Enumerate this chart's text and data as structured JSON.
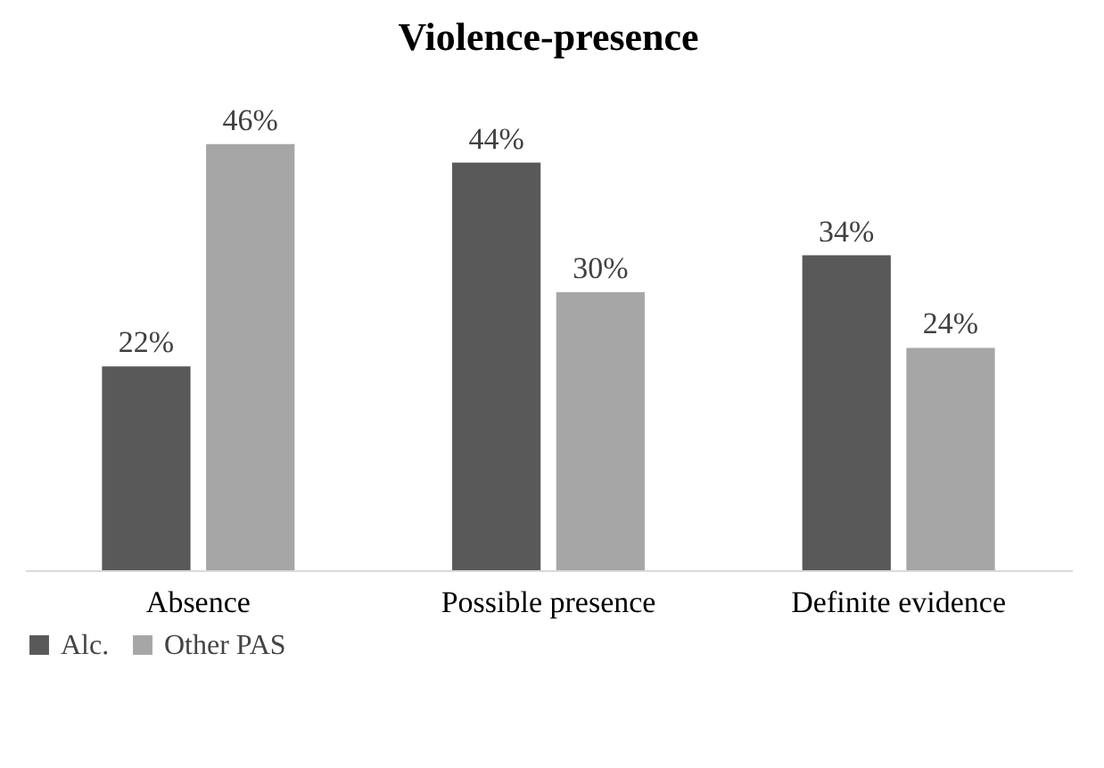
{
  "chart_data": {
    "type": "bar",
    "title": "Violence-presence",
    "categories": [
      "Absence",
      "Possible presence",
      "Definite evidence"
    ],
    "series": [
      {
        "name": "Alc.",
        "color": "#595959",
        "values": [
          22,
          44,
          34
        ],
        "value_labels": [
          "22%",
          "44%",
          "34%"
        ]
      },
      {
        "name": "Other PAS",
        "color": "#a6a6a6",
        "values": [
          46,
          30,
          24
        ],
        "value_labels": [
          "46%",
          "30%",
          "24%"
        ]
      }
    ],
    "legend": "bottom",
    "grid": false
  }
}
